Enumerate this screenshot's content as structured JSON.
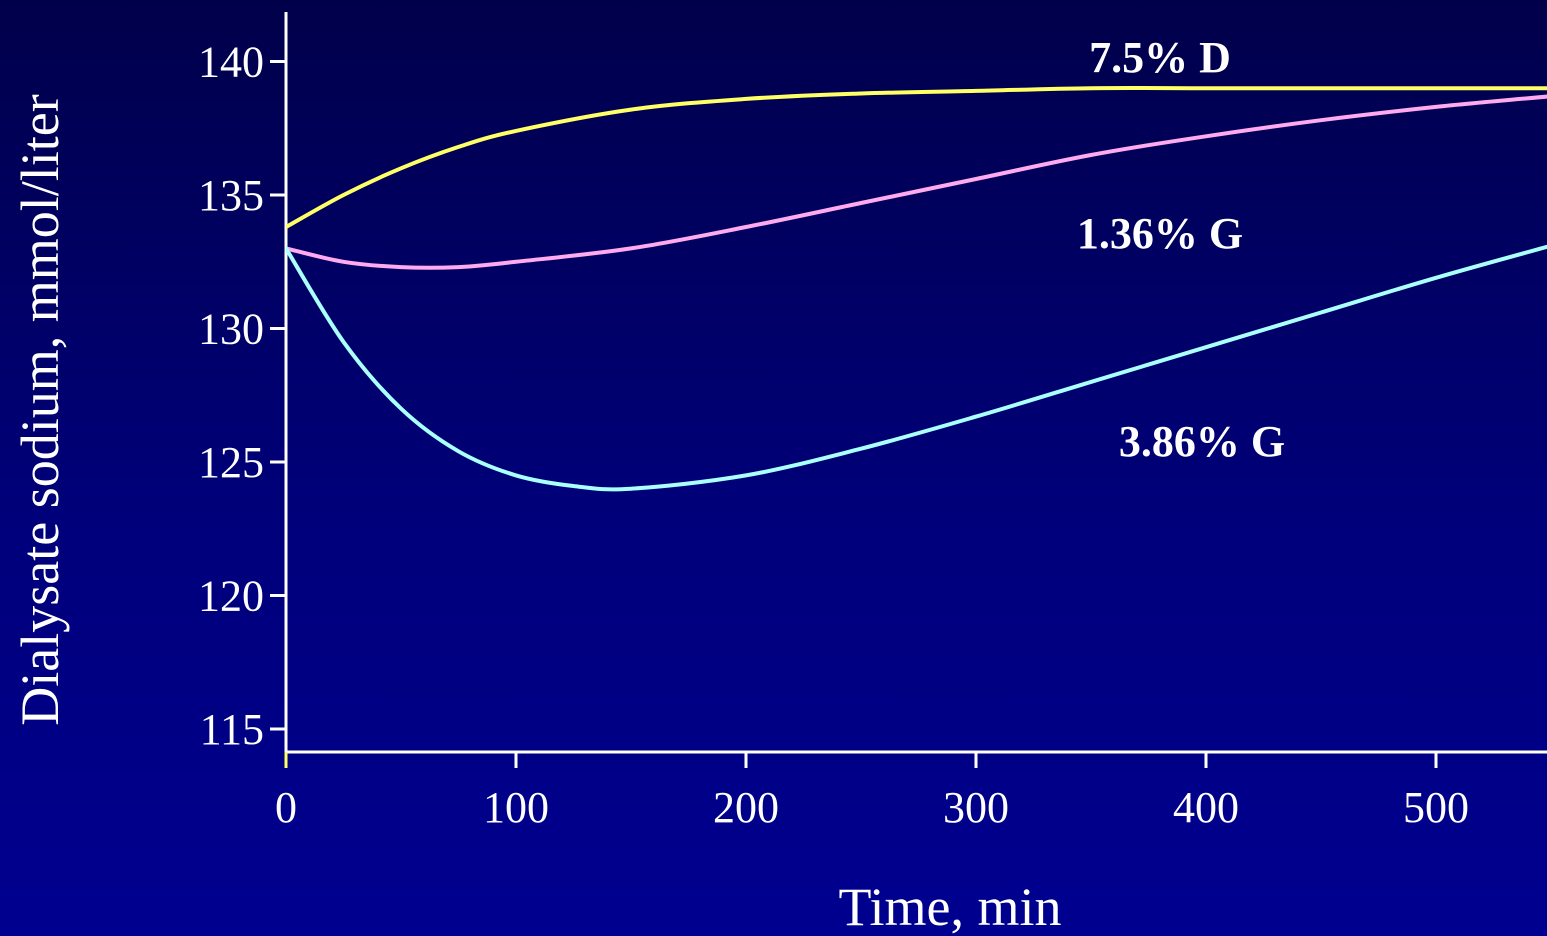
{
  "chart_data": {
    "type": "line",
    "title": "",
    "xlabel": "Time, min",
    "ylabel": "Dialysate sodium, mmol/liter",
    "xlim": [
      0,
      550
    ],
    "ylim": [
      115,
      141
    ],
    "x_ticks": [
      0,
      100,
      200,
      300,
      400,
      500
    ],
    "y_ticks": [
      115,
      120,
      125,
      130,
      135,
      140
    ],
    "grid": false,
    "legend": "inline labels",
    "series": [
      {
        "name": "7.5% D",
        "color": "#ffff66",
        "x": [
          0,
          25,
          50,
          75,
          100,
          150,
          200,
          250,
          300,
          350,
          400,
          450,
          500,
          550
        ],
        "y": [
          133.8,
          135.0,
          136.0,
          136.8,
          137.4,
          138.2,
          138.6,
          138.8,
          138.9,
          139.0,
          139.0,
          139.0,
          139.0,
          139.0
        ]
      },
      {
        "name": "1.36% G",
        "color": "#ffaaee",
        "x": [
          0,
          25,
          50,
          75,
          100,
          150,
          200,
          250,
          300,
          350,
          400,
          450,
          500,
          550
        ],
        "y": [
          133.0,
          132.5,
          132.3,
          132.3,
          132.5,
          133.0,
          133.8,
          134.7,
          135.6,
          136.5,
          137.2,
          137.8,
          138.3,
          138.7
        ]
      },
      {
        "name": "3.86% G",
        "color": "#aaffff",
        "x": [
          0,
          25,
          50,
          75,
          100,
          125,
          150,
          200,
          250,
          300,
          350,
          400,
          450,
          500,
          550
        ],
        "y": [
          133.0,
          129.5,
          127.0,
          125.4,
          124.5,
          124.1,
          124.0,
          124.5,
          125.5,
          126.7,
          128.0,
          129.3,
          130.6,
          131.9,
          133.1
        ]
      }
    ]
  }
}
